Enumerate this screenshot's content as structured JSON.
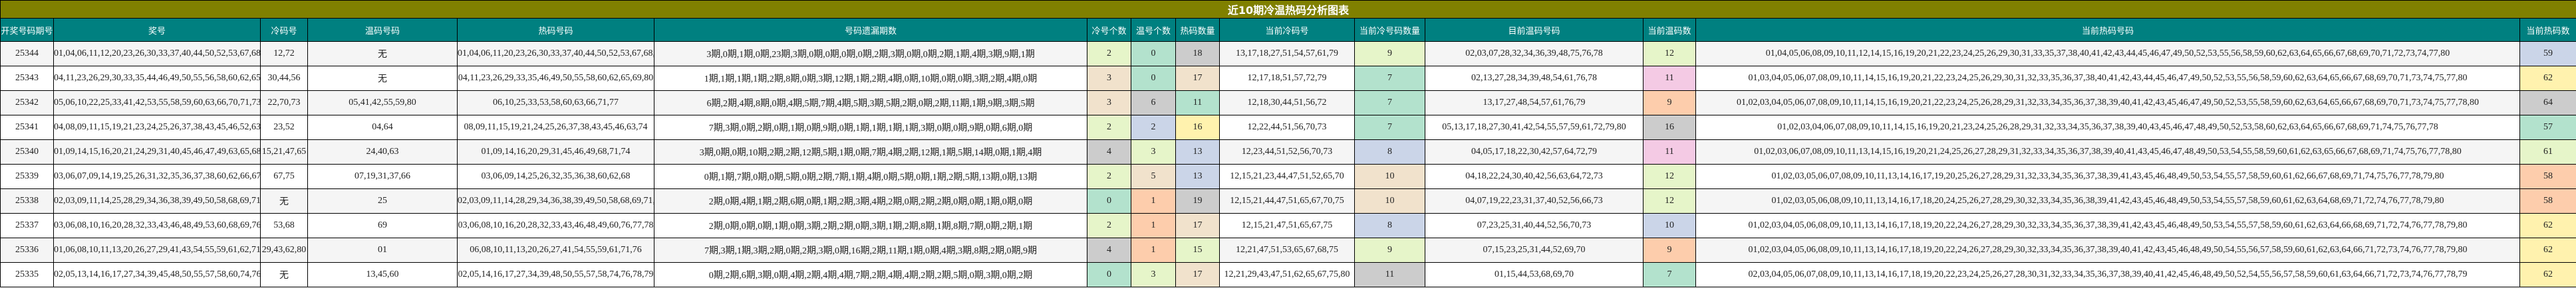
{
  "title": "近10期冷温热码分析图表",
  "palette": {
    "lightgreen": "#e6f5c9",
    "mint": "#b3e2cd",
    "gray": "#cccccc",
    "tan": "#f1e2cc",
    "yellow": "#fff2ae",
    "blue": "#cbd5e8",
    "peach": "#fdcdac",
    "pink": "#f4cae4"
  },
  "headers": [
    "开奖号码期号",
    "奖号",
    "冷码号",
    "温码号码",
    "热码号码",
    "号码遗漏期数",
    "冷号个数",
    "温号个数",
    "热码数量",
    "当前冷码号",
    "当前冷号码数量",
    "目前温码号码",
    "当前温码数",
    "当前热码号码",
    "当前热码数"
  ],
  "rows": [
    {
      "period": "25344",
      "draw": "01,04,06,11,12,20,23,26,30,33,37,40,44,50,52,53,67,68,72,73",
      "cold": "12,72",
      "warm": "无",
      "hot": "01,04,06,11,20,23,26,30,33,37,40,44,50,52,53,67,68,73",
      "miss": "3期,0期,1期,0期,23期,3期,0期,0期,0期,0期,2期,3期,0期,0期,2期,1期,4期,3期,9期,1期",
      "cold_n": "2",
      "cold_c": "lightgreen",
      "warm_n": "0",
      "warm_c": "mint",
      "hot_n": "18",
      "hot_c": "gray",
      "cur_cold": "13,17,18,27,51,54,57,61,79",
      "cur_cold_n": "9",
      "cur_cold_c": "lightgreen",
      "cur_warm": "02,03,07,28,32,34,36,39,48,75,76,78",
      "cur_warm_n": "12",
      "cur_warm_c": "lightgreen",
      "cur_hot": "01,04,05,06,08,09,10,11,12,14,15,16,19,20,21,22,23,24,25,26,29,30,31,33,35,37,38,40,41,42,43,44,45,46,47,49,50,52,53,55,56,58,59,60,62,63,64,65,66,67,68,69,70,71,72,73,74,77,80",
      "cur_hot_n": "59",
      "cur_hot_c": "blue"
    },
    {
      "period": "25343",
      "draw": "04,11,23,26,29,30,33,35,44,46,49,50,55,56,58,60,62,65,69,80",
      "cold": "30,44,56",
      "warm": "无",
      "hot": "04,11,23,26,29,33,35,46,49,50,55,58,60,62,65,69,80",
      "miss": "1期,1期,1期,1期,2期,8期,0期,3期,12期,1期,2期,4期,0期,10期,0期,0期,3期,2期,4期,0期",
      "cold_n": "3",
      "cold_c": "tan",
      "warm_n": "0",
      "warm_c": "mint",
      "hot_n": "17",
      "hot_c": "tan",
      "cur_cold": "12,17,18,51,57,72,79",
      "cur_cold_n": "7",
      "cur_cold_c": "mint",
      "cur_warm": "02,13,27,28,34,39,48,54,61,76,78",
      "cur_warm_n": "11",
      "cur_warm_c": "pink",
      "cur_hot": "01,03,04,05,06,07,08,09,10,11,14,15,16,19,20,21,22,23,24,25,26,29,30,31,32,33,35,36,37,38,40,41,42,43,44,45,46,47,49,50,52,53,55,56,58,59,60,62,63,64,65,66,67,68,69,70,71,73,74,75,77,80",
      "cur_hot_n": "62",
      "cur_hot_c": "yellow"
    },
    {
      "period": "25342",
      "draw": "05,06,10,22,25,33,41,42,53,55,58,59,60,63,66,70,71,73,77,80",
      "cold": "22,70,73",
      "warm": "05,41,42,55,59,80",
      "hot": "06,10,25,33,53,58,60,63,66,71,77",
      "miss": "6期,2期,4期,8期,0期,4期,5期,7期,4期,5期,3期,5期,2期,0期,2期,11期,1期,9期,3期,5期",
      "cold_n": "3",
      "cold_c": "tan",
      "warm_n": "6",
      "warm_c": "gray",
      "hot_n": "11",
      "hot_c": "mint",
      "cur_cold": "12,18,30,44,51,56,72",
      "cur_cold_n": "7",
      "cur_cold_c": "mint",
      "cur_warm": "13,17,27,48,54,57,61,76,79",
      "cur_warm_n": "9",
      "cur_warm_c": "peach",
      "cur_hot": "01,02,03,04,05,06,07,08,09,10,11,14,15,16,19,20,21,22,23,24,25,26,28,29,31,32,33,34,35,36,37,38,39,40,41,42,43,45,46,47,49,50,52,53,55,58,59,60,62,63,64,65,66,67,68,69,70,71,73,74,75,77,78,80",
      "cur_hot_n": "64",
      "cur_hot_c": "gray"
    },
    {
      "period": "25341",
      "draw": "04,08,09,11,15,19,21,23,24,25,26,37,38,43,45,46,52,63,64,74",
      "cold": "23,52",
      "warm": "04,64",
      "hot": "08,09,11,15,19,21,24,25,26,37,38,43,45,46,63,74",
      "miss": "7期,3期,0期,2期,0期,1期,0期,9期,0期,1期,1期,1期,1期,3期,0期,0期,9期,0期,6期,0期",
      "cold_n": "2",
      "cold_c": "lightgreen",
      "warm_n": "2",
      "warm_c": "blue",
      "hot_n": "16",
      "hot_c": "yellow",
      "cur_cold": "12,22,44,51,56,70,73",
      "cur_cold_n": "7",
      "cur_cold_c": "mint",
      "cur_warm": "05,13,17,18,27,30,41,42,54,55,57,59,61,72,79,80",
      "cur_warm_n": "16",
      "cur_warm_c": "gray",
      "cur_hot": "01,02,03,04,06,07,08,09,10,11,14,15,16,19,20,21,23,24,25,26,28,29,31,32,33,34,35,36,37,38,39,40,43,45,46,47,48,49,50,52,53,58,60,62,63,64,65,66,67,68,69,71,74,75,76,77,78",
      "cur_hot_n": "57",
      "cur_hot_c": "mint"
    },
    {
      "period": "25340",
      "draw": "01,09,14,15,16,20,21,24,29,31,40,45,46,47,49,63,65,68,71,74",
      "cold": "15,21,47,65",
      "warm": "24,40,63",
      "hot": "01,09,14,16,20,29,31,45,46,49,68,71,74",
      "miss": "3期,0期,0期,10期,2期,2期,12期,5期,1期,0期,7期,4期,2期,12期,1期,5期,14期,0期,1期,4期",
      "cold_n": "4",
      "cold_c": "gray",
      "warm_n": "3",
      "warm_c": "lightgreen",
      "hot_n": "13",
      "hot_c": "blue",
      "cur_cold": "12,23,44,51,52,56,70,73",
      "cur_cold_n": "8",
      "cur_cold_c": "blue",
      "cur_warm": "04,05,17,18,22,30,42,57,64,72,79",
      "cur_warm_n": "11",
      "cur_warm_c": "pink",
      "cur_hot": "01,02,03,06,07,08,09,10,11,13,14,15,16,19,20,21,24,25,26,27,28,29,31,32,33,34,35,36,37,38,39,40,41,43,45,46,47,48,49,50,53,54,55,58,59,60,61,62,63,65,66,67,68,69,71,74,75,76,77,78,80",
      "cur_hot_n": "61",
      "cur_hot_c": "lightgreen"
    },
    {
      "period": "25339",
      "draw": "03,06,07,09,14,19,25,26,31,32,35,36,37,38,60,62,66,67,68,75",
      "cold": "67,75",
      "warm": "07,19,31,37,66",
      "hot": "03,06,09,14,25,26,32,35,36,38,60,62,68",
      "miss": "0期,1期,7期,0期,0期,5期,0期,2期,7期,1期,4期,0期,5期,0期,1期,2期,5期,13期,0期,13期",
      "cold_n": "2",
      "cold_c": "lightgreen",
      "warm_n": "5",
      "warm_c": "tan",
      "hot_n": "13",
      "hot_c": "blue",
      "cur_cold": "12,15,21,23,44,47,51,52,65,70",
      "cur_cold_n": "10",
      "cur_cold_c": "tan",
      "cur_warm": "04,18,22,24,30,40,42,56,63,64,72,73",
      "cur_warm_n": "12",
      "cur_warm_c": "lightgreen",
      "cur_hot": "01,02,03,05,06,07,08,09,10,11,13,14,16,17,19,20,25,26,27,28,29,31,32,33,34,35,36,37,38,39,41,43,45,46,48,49,50,53,54,55,57,58,59,60,61,62,66,67,68,69,71,74,75,76,77,78,79,80",
      "cur_hot_n": "58",
      "cur_hot_c": "peach"
    },
    {
      "period": "25338",
      "draw": "02,03,09,11,14,25,28,29,34,36,38,39,49,50,58,68,69,71,77,78",
      "cold": "无",
      "warm": "25",
      "hot": "02,03,09,11,14,28,29,34,36,38,39,49,50,58,68,69,71,77,78",
      "miss": "2期,0期,4期,1期,2期,6期,0期,1期,2期,3期,4期,2期,0期,2期,2期,0期,0期,1期,0期,0期",
      "cold_n": "0",
      "cold_c": "mint",
      "warm_n": "1",
      "warm_c": "peach",
      "hot_n": "19",
      "hot_c": "gray",
      "cur_cold": "12,15,21,44,47,51,65,67,70,75",
      "cur_cold_n": "10",
      "cur_cold_c": "tan",
      "cur_warm": "04,07,19,22,23,31,37,40,52,56,66,73",
      "cur_warm_n": "12",
      "cur_warm_c": "lightgreen",
      "cur_hot": "01,02,03,05,06,08,09,10,11,13,14,16,17,18,20,24,25,26,27,28,29,30,32,33,34,35,36,38,39,41,42,43,45,46,48,49,50,53,54,55,57,58,59,60,61,62,63,64,68,69,71,72,74,76,77,78,79,80",
      "cur_hot_n": "58",
      "cur_hot_c": "peach"
    },
    {
      "period": "25337",
      "draw": "03,06,08,10,16,20,28,32,33,43,46,48,49,53,60,68,69,76,77,78",
      "cold": "53,68",
      "warm": "69",
      "hot": "03,06,08,10,16,20,28,32,33,43,46,48,49,60,76,77,78",
      "miss": "2期,0期,0期,0期,1期,0期,3期,2期,2期,0期,3期,1期,2期,8期,1期,8期,7期,0期,2期,1期",
      "cold_n": "2",
      "cold_c": "lightgreen",
      "warm_n": "1",
      "warm_c": "peach",
      "hot_n": "17",
      "hot_c": "tan",
      "cur_cold": "12,15,21,47,51,65,67,75",
      "cur_cold_n": "8",
      "cur_cold_c": "blue",
      "cur_warm": "07,23,25,31,40,44,52,56,70,73",
      "cur_warm_n": "10",
      "cur_warm_c": "blue",
      "cur_hot": "01,02,03,04,05,06,08,09,10,11,13,14,16,17,18,19,20,22,24,26,27,28,29,30,32,33,34,35,36,37,38,39,41,42,43,45,46,48,49,50,53,54,55,57,58,59,60,61,62,63,64,66,68,69,71,72,74,76,77,78,79,80",
      "cur_hot_n": "62",
      "cur_hot_c": "yellow"
    },
    {
      "period": "25336",
      "draw": "01,06,08,10,11,13,20,26,27,29,41,43,54,55,59,61,62,71,76,80",
      "cold": "29,43,62,80",
      "warm": "01",
      "hot": "06,08,10,11,13,20,26,27,41,54,55,59,61,71,76",
      "miss": "7期,3期,1期,3期,2期,0期,2期,3期,0期,16期,2期,11期,1期,0期,4期,3期,8期,2期,0期,9期",
      "cold_n": "4",
      "cold_c": "gray",
      "warm_n": "1",
      "warm_c": "peach",
      "hot_n": "15",
      "hot_c": "lightgreen",
      "cur_cold": "12,21,47,51,53,65,67,68,75",
      "cur_cold_n": "9",
      "cur_cold_c": "lightgreen",
      "cur_warm": "07,15,23,25,31,44,52,69,70",
      "cur_warm_n": "9",
      "cur_warm_c": "peach",
      "cur_hot": "01,02,03,04,05,06,08,09,10,11,13,14,16,17,18,19,20,22,24,26,27,28,29,30,32,33,34,35,36,37,38,39,40,41,42,43,45,46,48,49,50,54,55,56,57,58,59,60,61,62,63,64,66,71,72,73,74,76,77,78,79,80",
      "cur_hot_n": "62",
      "cur_hot_c": "yellow"
    },
    {
      "period": "25335",
      "draw": "02,05,13,14,16,17,27,34,39,45,48,50,55,57,58,60,74,76,78,79",
      "cold": "无",
      "warm": "13,45,60",
      "hot": "02,05,14,16,17,27,34,39,48,50,55,57,58,74,76,78,79",
      "miss": "0期,2期,6期,3期,0期,4期,2期,4期,4期,7期,2期,4期,4期,2期,2期,5期,0期,3期,0期,2期",
      "cold_n": "0",
      "cold_c": "mint",
      "warm_n": "3",
      "warm_c": "lightgreen",
      "hot_n": "17",
      "hot_c": "tan",
      "cur_cold": "12,21,29,43,47,51,62,65,67,75,80",
      "cur_cold_n": "11",
      "cur_cold_c": "gray",
      "cur_warm": "01,15,44,53,68,69,70",
      "cur_warm_n": "7",
      "cur_warm_c": "mint",
      "cur_hot": "02,03,04,05,06,07,08,09,10,11,13,14,16,17,18,19,20,22,23,24,25,26,27,28,30,31,32,33,34,35,36,37,38,39,40,41,42,45,46,48,49,50,52,54,55,56,57,58,59,60,61,63,64,66,71,72,73,74,76,77,78,79",
      "cur_hot_n": "62",
      "cur_hot_c": "yellow"
    }
  ]
}
